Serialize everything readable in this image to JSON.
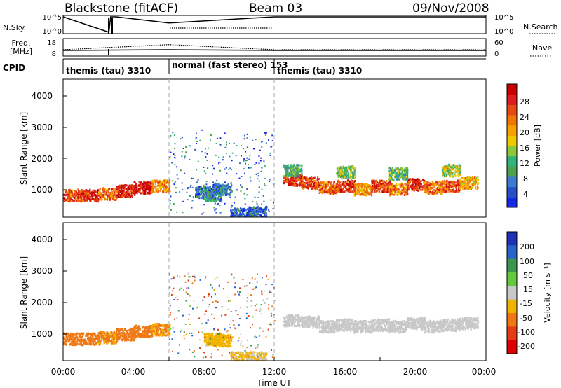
{
  "header": {
    "station": "Blackstone (fitACF)",
    "beam": "Beam 03",
    "date": "09/Nov/2008"
  },
  "strips": {
    "nsky_label": "N.Sky",
    "nsky_ticks": [
      "10^5",
      "10^0"
    ],
    "nsearch_label": "N.Search",
    "nsearch_ticks": [
      "10^5",
      "10^0"
    ],
    "freq_label_line1": "Freq.",
    "freq_label_line2": "[MHz]",
    "freq_ticks": [
      "18",
      "8"
    ],
    "nave_label": "Nave",
    "nave_ticks": [
      "60",
      "0"
    ],
    "cpid_label": "CPID",
    "cpid_segments": [
      {
        "label": "themis (tau) 3310",
        "start_hour": 0,
        "end_hour": 6
      },
      {
        "label": "normal (fast stereo) 153",
        "start_hour": 6,
        "end_hour": 12
      },
      {
        "label": "themis (tau) 3310",
        "start_hour": 12,
        "end_hour": 24
      }
    ]
  },
  "power_panel": {
    "ylabel": "Slant Range [km]",
    "yticks": [
      "4000",
      "3000",
      "2000",
      "1000"
    ],
    "colorbar_label": "Power [dB]",
    "colorbar_ticks": [
      "28",
      "24",
      "20",
      "16",
      "12",
      "8",
      "4"
    ],
    "colors": [
      "#1428e6",
      "#2850c8",
      "#3c7ad2",
      "#50a050",
      "#32b478",
      "#8cc83c",
      "#f0c800",
      "#f5a000",
      "#f07800",
      "#e64b14",
      "#dc1e1e",
      "#c80000"
    ]
  },
  "velocity_panel": {
    "ylabel": "Slant Range [km]",
    "yticks": [
      "4000",
      "3000",
      "2000",
      "1000"
    ],
    "colorbar_label": "Velocity [m s⁻¹]",
    "colorbar_ticks": [
      "200",
      "100",
      "50",
      "15",
      "-15",
      "-50",
      "-100",
      "-200"
    ],
    "colors": [
      "#1e32b4",
      "#2864c8",
      "#3c9650",
      "#64c83c",
      "#c8c8c8",
      "#f0b400",
      "#f07814",
      "#e63c14",
      "#dc0000"
    ]
  },
  "xaxis": {
    "ticks": [
      "00:00",
      "04:00",
      "08:00",
      "12:00",
      "16:00",
      "20:00",
      "00:00"
    ],
    "label": "Time UT"
  },
  "chart_data": [
    {
      "type": "heatmap",
      "title": "Power [dB]",
      "xlabel": "Time UT",
      "ylabel": "Slant Range [km]",
      "xlim": [
        0,
        24
      ],
      "ylim": [
        180,
        4600
      ],
      "clim": [
        0,
        30
      ],
      "series": [
        {
          "x": [
            0.5,
            1.5,
            2.5,
            3.5,
            4.5,
            5.5
          ],
          "y": [
            900,
            900,
            950,
            1050,
            1150,
            1200
          ],
          "values": [
            24,
            26,
            22,
            27,
            28,
            20
          ]
        },
        {
          "x": [
            13,
            14,
            15,
            16,
            17,
            18,
            19,
            20,
            21,
            22,
            23
          ],
          "y": [
            1400,
            1300,
            1150,
            1200,
            1100,
            1200,
            1100,
            1250,
            1150,
            1200,
            1300
          ],
          "values": [
            26,
            24,
            22,
            25,
            20,
            24,
            21,
            26,
            22,
            24,
            18
          ]
        },
        {
          "x": [
            13,
            16,
            19,
            22
          ],
          "y": [
            1700,
            1650,
            1600,
            1700
          ],
          "values": [
            10,
            12,
            11,
            14
          ]
        },
        {
          "x": [
            8,
            8.5,
            9,
            10,
            11
          ],
          "y": [
            1000,
            900,
            1100,
            300,
            350
          ],
          "values": [
            6,
            8,
            7,
            4,
            5
          ]
        }
      ]
    },
    {
      "type": "heatmap",
      "title": "Velocity [m s⁻¹]",
      "xlabel": "Time UT",
      "ylabel": "Slant Range [km]",
      "xlim": [
        0,
        24
      ],
      "ylim": [
        180,
        4600
      ],
      "clim": [
        -250,
        250
      ],
      "series": [
        {
          "x": [
            0.5,
            1.5,
            2.5,
            3.5,
            4.5,
            5.5
          ],
          "y": [
            900,
            900,
            950,
            1050,
            1150,
            1200
          ],
          "values": [
            -60,
            -70,
            -55,
            -60,
            -65,
            -50
          ]
        },
        {
          "x": [
            13,
            14,
            15,
            16,
            17,
            18,
            19,
            20,
            21,
            22,
            23
          ],
          "y": [
            1500,
            1450,
            1300,
            1350,
            1300,
            1350,
            1300,
            1400,
            1300,
            1350,
            1400
          ],
          "values": [
            0,
            0,
            5,
            -5,
            0,
            0,
            5,
            0,
            -5,
            0,
            0
          ]
        },
        {
          "x": [
            8.5,
            9,
            10,
            11
          ],
          "y": [
            900,
            850,
            300,
            300
          ],
          "values": [
            -40,
            -35,
            -20,
            -15
          ]
        }
      ]
    },
    {
      "type": "line",
      "title": "N.Sky",
      "x": [
        0,
        2.6,
        2.7,
        3,
        6,
        12,
        18,
        23,
        24
      ],
      "series": [
        {
          "values": [
            100000,
            1,
            100000,
            100000,
            1000,
            100000,
            100000,
            100000,
            100000
          ]
        }
      ]
    },
    {
      "type": "line",
      "title": "Freq. [MHz]",
      "x": [
        0,
        6,
        12,
        24
      ],
      "series": [
        {
          "values": [
            10.5,
            11,
            10.5,
            10.5
          ]
        }
      ]
    },
    {
      "type": "line",
      "title": "Nave",
      "x": [
        0,
        6,
        12,
        24
      ],
      "series": [
        {
          "values": [
            18,
            40,
            18,
            18
          ]
        }
      ]
    }
  ]
}
